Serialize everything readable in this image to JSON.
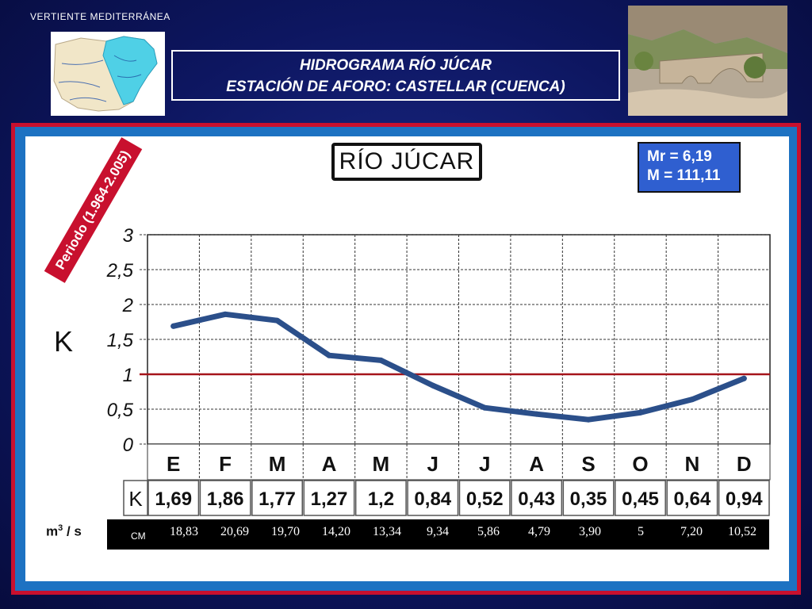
{
  "header": {
    "region_label": "VERTIENTE  MEDITERRÁNEA",
    "title_line1": "HIDROGRAMA  RÍO  JÚCAR",
    "title_line2": "ESTACIÓN DE AFORO:    CASTELLAR (CUENCA)"
  },
  "panel": {
    "river_name": "RÍO JÚCAR",
    "mr_text": "Mr = 6,19",
    "m_text": "M = 111,11",
    "period_text": "Periodo (1.964-2.005)",
    "k_axis_label": "K",
    "units_base": "m",
    "units_sup": "3",
    "units_rest": " / s",
    "cm_label": "CM",
    "k_row_label": "K"
  },
  "colors": {
    "line": "#2b4f8a",
    "reference": "#a5141a",
    "stats_box": "#2f5fd0",
    "period_band": "#c8102e",
    "frame": "#1d72c2"
  },
  "chart_data": {
    "type": "line",
    "categories": [
      "E",
      "F",
      "M",
      "A",
      "M",
      "J",
      "J",
      "A",
      "S",
      "O",
      "N",
      "D"
    ],
    "series": [
      {
        "values": [
          1.69,
          1.86,
          1.77,
          1.27,
          1.2,
          0.84,
          0.52,
          0.43,
          0.35,
          0.45,
          0.64,
          0.94
        ]
      }
    ],
    "value_labels": [
      "1,69",
      "1,86",
      "1,77",
      "1,27",
      "1,2",
      "0,84",
      "0,52",
      "0,43",
      "0,35",
      "0,45",
      "0,64",
      "0,94"
    ],
    "cm_values": [
      "18,83",
      "20,69",
      "19,70",
      "14,20",
      "13,34",
      "9,34",
      "5,86",
      "4,79",
      "3,90",
      "5",
      "7,20",
      "10,52"
    ],
    "y_ticks": [
      "0",
      "0,5",
      "1",
      "1,5",
      "2",
      "2,5",
      "3"
    ],
    "ylim": [
      0,
      3
    ],
    "reference_line": 1,
    "grid": true
  }
}
